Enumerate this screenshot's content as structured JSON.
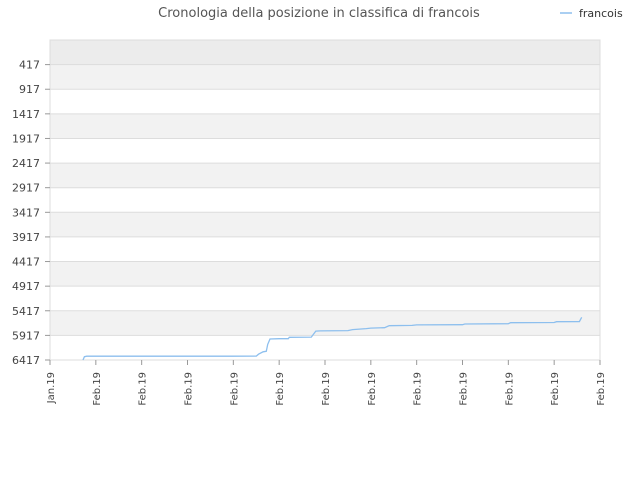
{
  "chart_data": {
    "type": "line",
    "title": "Cronologia della posizione in classifica di francois",
    "xlabel": "",
    "ylabel": "",
    "y_reversed": true,
    "ylim": [
      6417,
      -83
    ],
    "grid": true,
    "legend_position": "top-right",
    "y_ticks": [
      "417",
      "917",
      "1417",
      "1917",
      "2417",
      "2917",
      "3417",
      "3917",
      "4417",
      "4917",
      "5417",
      "5917",
      "6417"
    ],
    "x_ticks": [
      "Jan.19",
      "Feb.19",
      "Feb.19",
      "Feb.19",
      "Feb.19",
      "Feb.19",
      "Feb.19",
      "Feb.19",
      "Feb.19",
      "Feb.19",
      "Feb.19",
      "Feb.19",
      "Feb.19"
    ],
    "colors": {
      "series": "#8dbfee",
      "band_dark": "#f2f2f2",
      "band_light": "#ffffff",
      "top_band": "#ececec",
      "grid": "#dddddd"
    },
    "series": [
      {
        "name": "francois",
        "points": [
          [
            0.72,
            6417
          ],
          [
            0.75,
            6350
          ],
          [
            0.8,
            6340
          ],
          [
            1.0,
            6340
          ],
          [
            2.0,
            6340
          ],
          [
            3.0,
            6340
          ],
          [
            4.0,
            6340
          ],
          [
            4.5,
            6338
          ],
          [
            4.55,
            6300
          ],
          [
            4.65,
            6250
          ],
          [
            4.72,
            6240
          ],
          [
            4.75,
            6100
          ],
          [
            4.8,
            5990
          ],
          [
            5.0,
            5985
          ],
          [
            5.2,
            5985
          ],
          [
            5.22,
            5955
          ],
          [
            5.7,
            5952
          ],
          [
            5.8,
            5830
          ],
          [
            5.9,
            5825
          ],
          [
            6.5,
            5820
          ],
          [
            6.6,
            5800
          ],
          [
            6.9,
            5780
          ],
          [
            7.0,
            5770
          ],
          [
            7.3,
            5760
          ],
          [
            7.4,
            5720
          ],
          [
            7.9,
            5715
          ],
          [
            8.0,
            5705
          ],
          [
            9.0,
            5700
          ],
          [
            9.05,
            5685
          ],
          [
            10.0,
            5680
          ],
          [
            10.05,
            5660
          ],
          [
            11.0,
            5655
          ],
          [
            11.05,
            5640
          ],
          [
            11.55,
            5638
          ],
          [
            11.6,
            5550
          ]
        ]
      }
    ]
  }
}
